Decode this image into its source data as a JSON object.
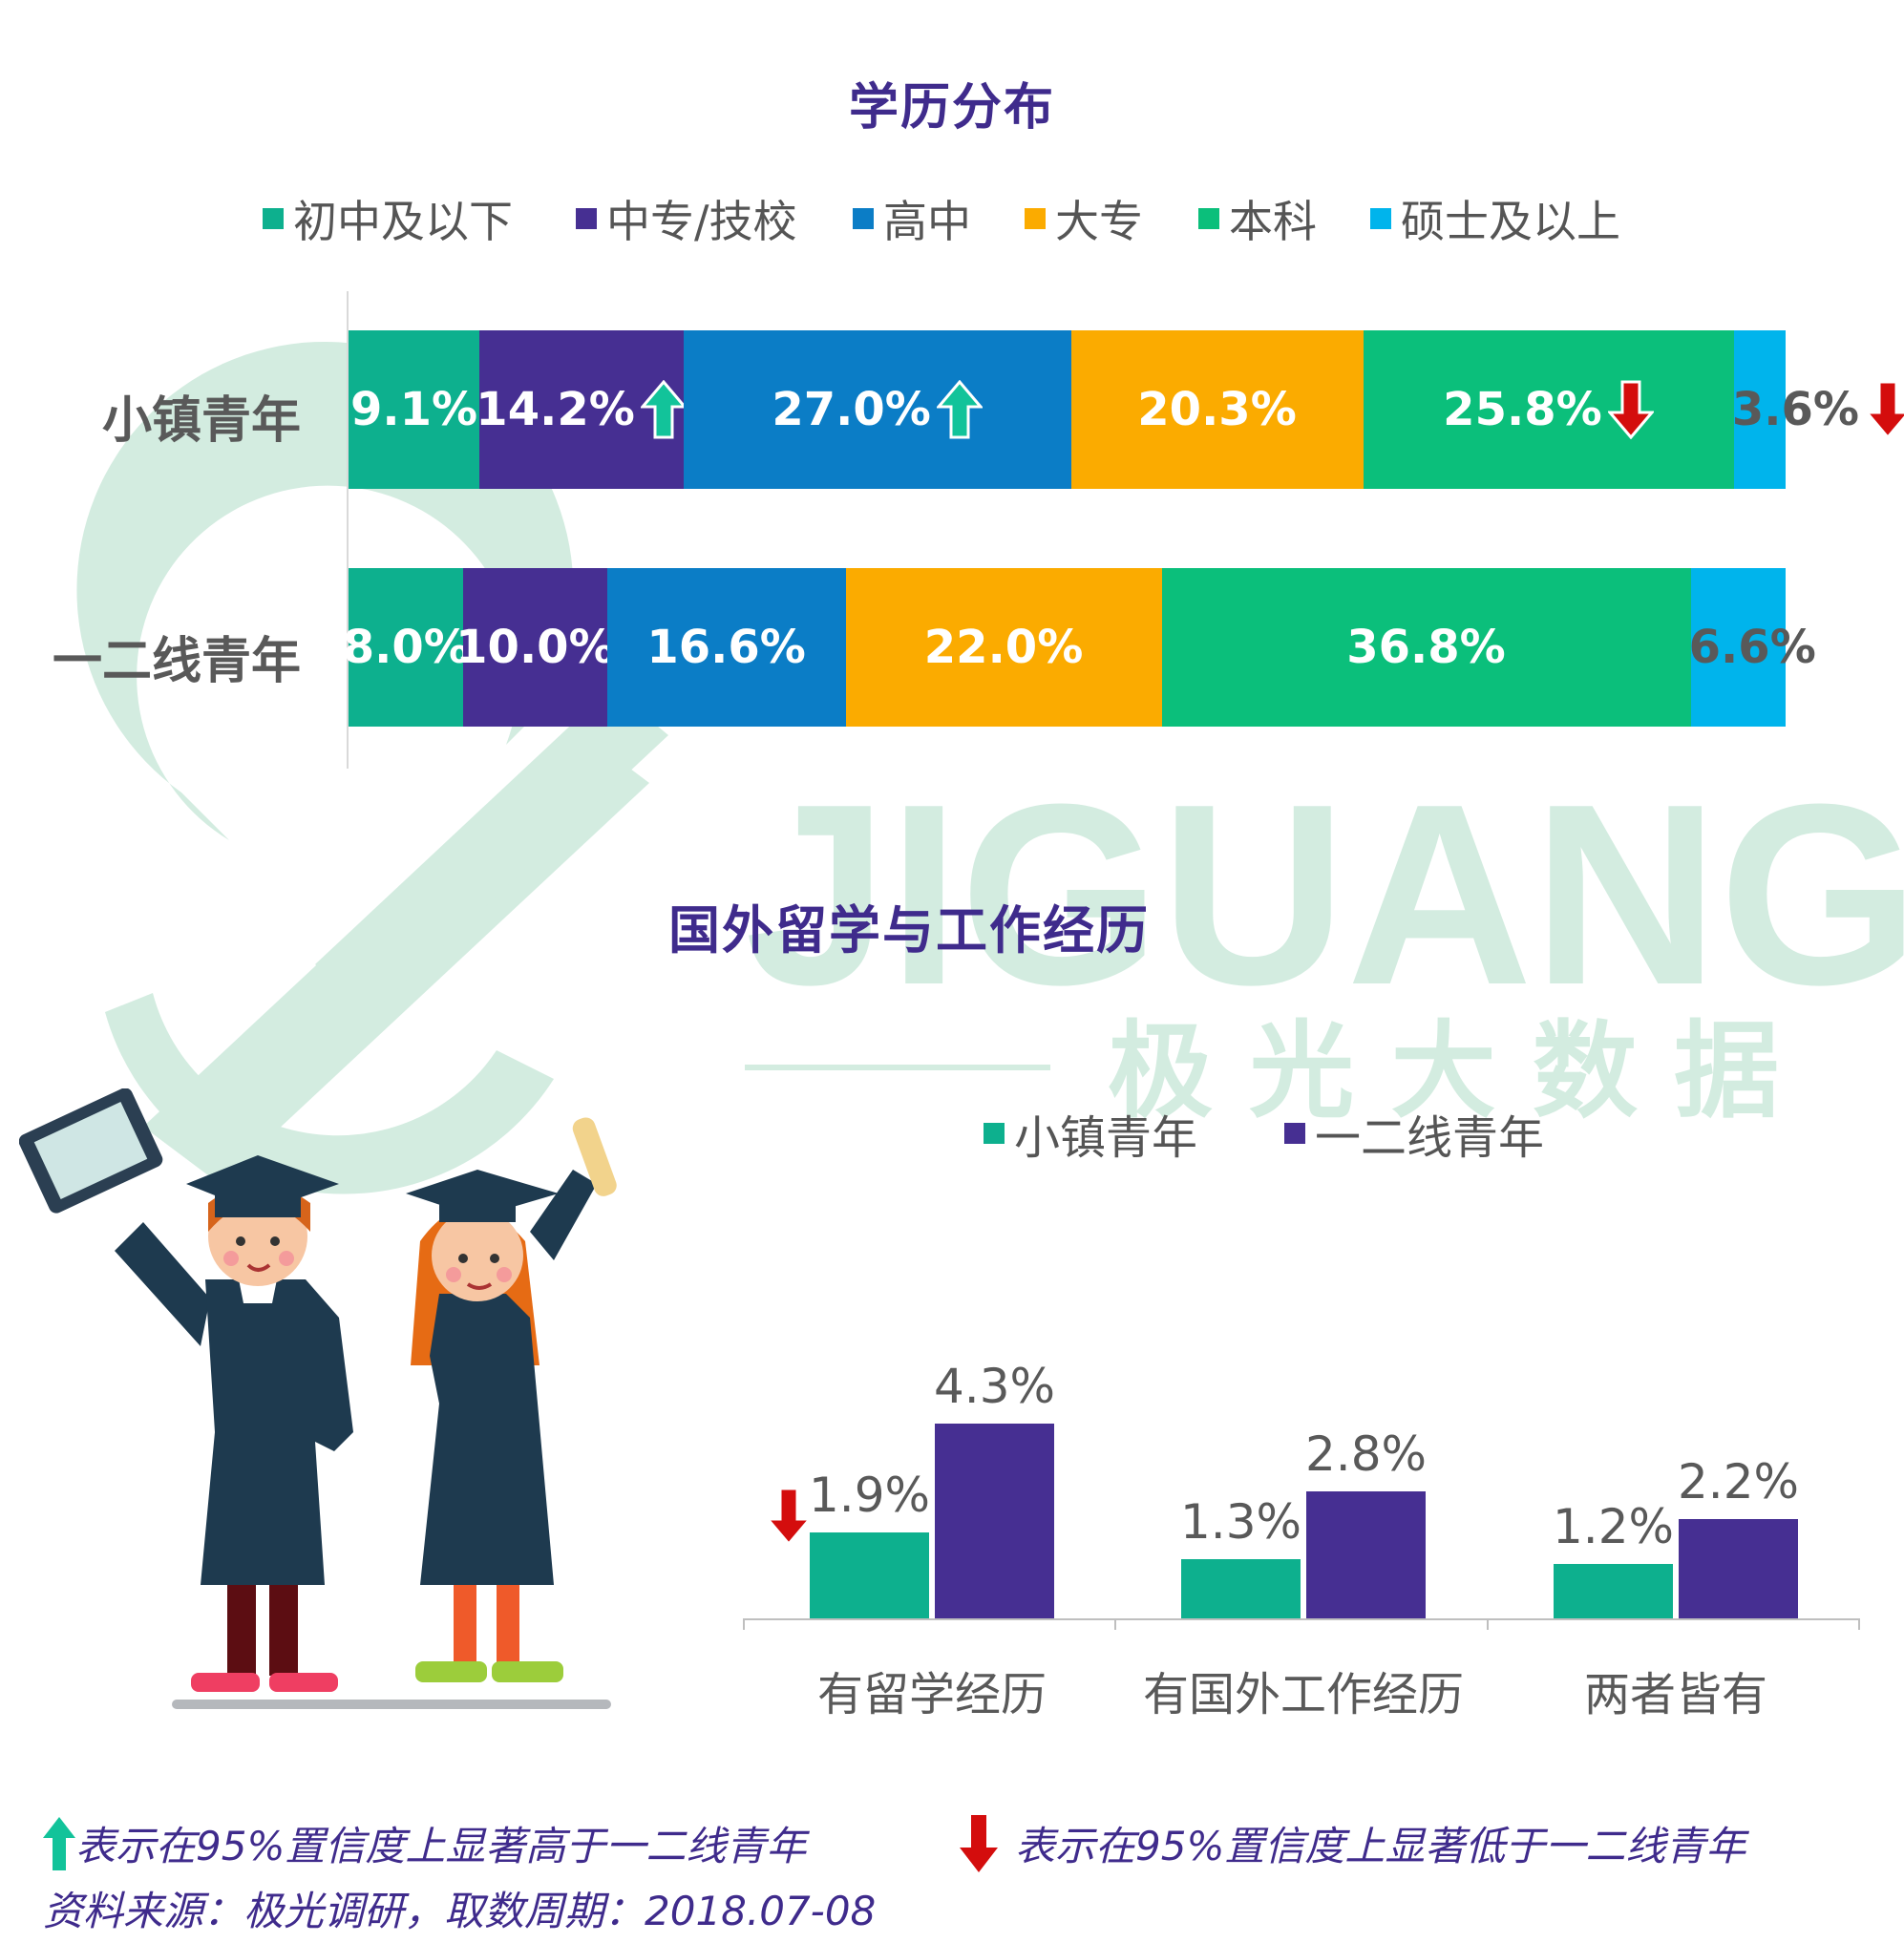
{
  "colors": {
    "c1": "#0db08e",
    "c2": "#462f92",
    "c3": "#0b7dc6",
    "c4": "#fbab00",
    "c5": "#0bbf7b",
    "c6": "#00b4ec",
    "up": "#12c39a",
    "down": "#d40d0d",
    "title": "#3f2b8c"
  },
  "watermark": {
    "brand": "JIGUANG",
    "cn": "极 光 大 数 据"
  },
  "education": {
    "title": "学历分布",
    "legend": [
      "初中及以下",
      "中专/技校",
      "高中",
      "大专",
      "本科",
      "硕士及以上"
    ],
    "chart_data": {
      "type": "bar",
      "stacked": "horizontal-100%",
      "categories": [
        "小镇青年",
        "一二线青年"
      ],
      "series": [
        {
          "name": "初中及以下",
          "values": [
            9.1,
            8.0
          ],
          "labels": [
            "9.1%",
            "8.0%"
          ]
        },
        {
          "name": "中专/技校",
          "values": [
            14.2,
            10.0
          ],
          "labels": [
            "14.2%",
            "10.0%"
          ]
        },
        {
          "name": "高中",
          "values": [
            27.0,
            16.6
          ],
          "labels": [
            "27.0%",
            "16.6%"
          ]
        },
        {
          "name": "大专",
          "values": [
            20.3,
            22.0
          ],
          "labels": [
            "20.3%",
            "22.0%"
          ]
        },
        {
          "name": "本科",
          "values": [
            25.8,
            36.8
          ],
          "labels": [
            "25.8%",
            "36.8%"
          ]
        },
        {
          "name": "硕士及以上",
          "values": [
            3.6,
            6.6
          ],
          "labels": [
            "3.6%",
            "6.6%"
          ]
        }
      ],
      "significance": [
        [
          "",
          "up",
          "up",
          "",
          "down",
          "down"
        ],
        [
          "",
          "",
          "",
          "",
          "",
          ""
        ]
      ]
    }
  },
  "abroad": {
    "title": "国外留学与工作经历",
    "legend": [
      "小镇青年",
      "一二线青年"
    ],
    "chart_data": {
      "type": "bar",
      "categories": [
        "有留学经历",
        "有国外工作经历",
        "两者皆有"
      ],
      "series": [
        {
          "name": "小镇青年",
          "values": [
            1.9,
            1.3,
            1.2
          ],
          "labels": [
            "1.9%",
            "1.3%",
            "1.2%"
          ]
        },
        {
          "name": "一二线青年",
          "values": [
            4.3,
            2.8,
            2.2
          ],
          "labels": [
            "4.3%",
            "2.8%",
            "2.2%"
          ]
        }
      ],
      "significance": [
        "down",
        "",
        ""
      ]
    }
  },
  "notes": {
    "up_text": "表示在95%置信度上显著高于一二线青年",
    "down_text": "表示在95%置信度上显著低于一二线青年",
    "source": "资料来源：极光调研，取数周期：2018.07-08"
  }
}
